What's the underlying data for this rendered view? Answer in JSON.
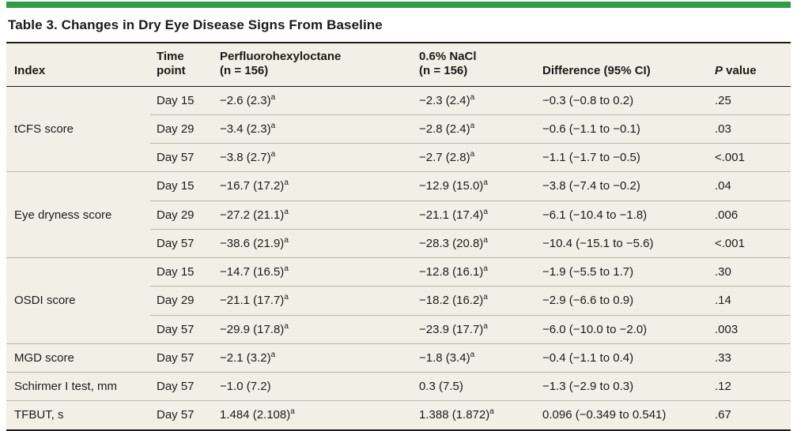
{
  "table": {
    "title": "Table 3. Changes in Dry Eye Disease Signs From Baseline",
    "header": {
      "index": "Index",
      "time_point": "Time\npoint",
      "drug": "Perfluorohexyloctane\n(n = 156)",
      "nacl": "0.6% NaCl\n(n = 156)",
      "difference": "Difference (95% CI)",
      "p_italic": "P",
      "p_rest": " value"
    },
    "groups": [
      {
        "index": "tCFS score",
        "rows": [
          {
            "time": "Day 15",
            "drug": "−2.6 (2.3)",
            "drug_sup": "a",
            "nacl": "−2.3 (2.4)",
            "nacl_sup": "a",
            "diff": "−0.3 (−0.8 to 0.2)",
            "p": ".25"
          },
          {
            "time": "Day 29",
            "drug": "−3.4 (2.3)",
            "drug_sup": "a",
            "nacl": "−2.8 (2.4)",
            "nacl_sup": "a",
            "diff": "−0.6 (−1.1 to −0.1)",
            "p": ".03"
          },
          {
            "time": "Day 57",
            "drug": "−3.8 (2.7)",
            "drug_sup": "a",
            "nacl": "−2.7 (2.8)",
            "nacl_sup": "a",
            "diff": "−1.1 (−1.7 to −0.5)",
            "p": "<.001"
          }
        ]
      },
      {
        "index": "Eye dryness score",
        "rows": [
          {
            "time": "Day 15",
            "drug": "−16.7 (17.2)",
            "drug_sup": "a",
            "nacl": "−12.9 (15.0)",
            "nacl_sup": "a",
            "diff": "−3.8 (−7.4 to −0.2)",
            "p": ".04"
          },
          {
            "time": "Day 29",
            "drug": "−27.2 (21.1)",
            "drug_sup": "a",
            "nacl": "−21.1 (17.4)",
            "nacl_sup": "a",
            "diff": "−6.1 (−10.4 to −1.8)",
            "p": ".006"
          },
          {
            "time": "Day 57",
            "drug": "−38.6 (21.9)",
            "drug_sup": "a",
            "nacl": "−28.3 (20.8)",
            "nacl_sup": "a",
            "diff": "−10.4 (−15.1 to −5.6)",
            "p": "<.001"
          }
        ]
      },
      {
        "index": "OSDI score",
        "rows": [
          {
            "time": "Day 15",
            "drug": "−14.7 (16.5)",
            "drug_sup": "a",
            "nacl": "−12.8 (16.1)",
            "nacl_sup": "a",
            "diff": "−1.9 (−5.5 to 1.7)",
            "p": ".30"
          },
          {
            "time": "Day 29",
            "drug": "−21.1 (17.7)",
            "drug_sup": "a",
            "nacl": "−18.2 (16.2)",
            "nacl_sup": "a",
            "diff": "−2.9 (−6.6 to 0.9)",
            "p": ".14"
          },
          {
            "time": "Day 57",
            "drug": "−29.9 (17.8)",
            "drug_sup": "a",
            "nacl": "−23.9 (17.7)",
            "nacl_sup": "a",
            "diff": "−6.0 (−10.0 to −2.0)",
            "p": ".003"
          }
        ]
      },
      {
        "index": "MGD score",
        "rows": [
          {
            "time": "Day 57",
            "drug": "−2.1 (3.2)",
            "drug_sup": "a",
            "nacl": "−1.8 (3.4)",
            "nacl_sup": "a",
            "diff": "−0.4 (−1.1 to 0.4)",
            "p": ".33"
          }
        ]
      },
      {
        "index": "Schirmer I test, mm",
        "rows": [
          {
            "time": "Day 57",
            "drug": "−1.0 (7.2)",
            "drug_sup": "",
            "nacl": "0.3 (7.5)",
            "nacl_sup": "",
            "diff": "−1.3 (−2.9 to 0.3)",
            "p": ".12"
          }
        ]
      },
      {
        "index": "TFBUT, s",
        "rows": [
          {
            "time": "Day 57",
            "drug": "1.484 (2.108)",
            "drug_sup": "a",
            "nacl": "1.388 (1.872)",
            "nacl_sup": "a",
            "diff": "0.096 (−0.349 to 0.541)",
            "p": ".67"
          }
        ]
      }
    ],
    "colors": {
      "accent_green": "#2e9e45",
      "table_bg": "#f2f0e6",
      "rule_dark": "#1a1a1a",
      "rule_light": "#bab7ac"
    }
  }
}
